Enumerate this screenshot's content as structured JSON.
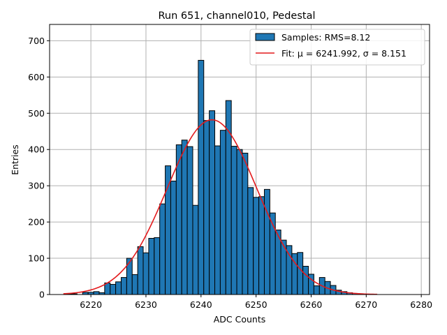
{
  "chart_data": {
    "type": "bar",
    "title": "Run 651, channel010, Pedestal",
    "xlabel": "ADC Counts",
    "ylabel": "Entries",
    "xlim": [
      6212.5,
      6281.5
    ],
    "ylim": [
      0,
      745
    ],
    "x_ticks": [
      6220,
      6230,
      6240,
      6250,
      6260,
      6270,
      6280
    ],
    "y_ticks": [
      0,
      100,
      200,
      300,
      400,
      500,
      600,
      700
    ],
    "grid": true,
    "legend_position": "top-right",
    "bin_width": 1,
    "series": [
      {
        "name": "Samples: RMS=8.12",
        "kind": "histogram",
        "color": "#1f77b4",
        "edge_color": "#000000",
        "x": [
          6216,
          6217,
          6218,
          6219,
          6220,
          6221,
          6222,
          6223,
          6224,
          6225,
          6226,
          6227,
          6228,
          6229,
          6230,
          6231,
          6232,
          6233,
          6234,
          6235,
          6236,
          6237,
          6238,
          6239,
          6240,
          6241,
          6242,
          6243,
          6244,
          6245,
          6246,
          6247,
          6248,
          6249,
          6250,
          6251,
          6252,
          6253,
          6254,
          6255,
          6256,
          6257,
          6258,
          6259,
          6260,
          6261,
          6262,
          6263,
          6264,
          6265,
          6266,
          6267,
          6268,
          6269,
          6270
        ],
        "values": [
          2,
          2,
          0,
          6,
          6,
          8,
          5,
          32,
          28,
          35,
          47,
          100,
          55,
          132,
          115,
          155,
          157,
          250,
          355,
          313,
          413,
          426,
          408,
          246,
          646,
          480,
          507,
          410,
          453,
          535,
          409,
          400,
          390,
          295,
          268,
          270,
          290,
          225,
          178,
          150,
          135,
          113,
          116,
          78,
          56,
          24,
          47,
          36,
          25,
          12,
          8,
          5,
          3,
          2,
          1
        ]
      },
      {
        "name": "Fit: μ = 6241.992, σ = 8.151",
        "kind": "gaussian-fit",
        "color": "#e31a1c",
        "mu": 6241.992,
        "sigma": 8.151,
        "amplitude": 482,
        "x_range": [
          6215,
          6272
        ]
      }
    ]
  }
}
